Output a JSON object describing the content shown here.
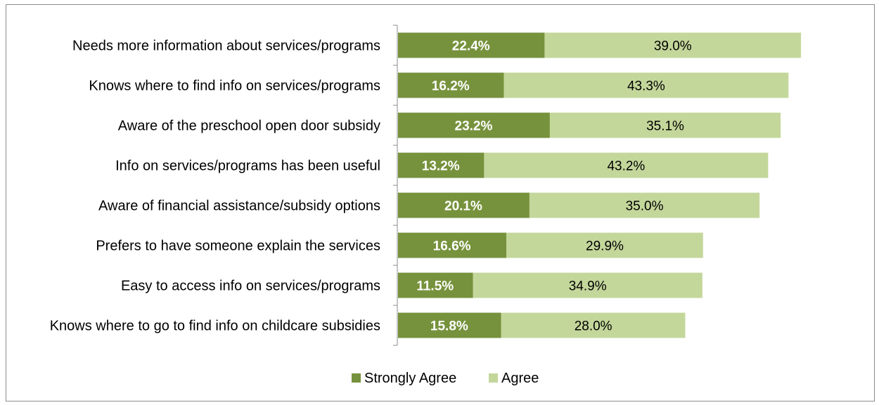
{
  "colors": {
    "strongly_agree": "#76923c",
    "agree": "#c4d79b",
    "axis": "#8c8c8c"
  },
  "chart_data": {
    "type": "bar",
    "orientation": "horizontal",
    "stacked": true,
    "categories": [
      "Needs more information about services/programs",
      "Knows where to find info on services/programs",
      "Aware of the preschool open door subsidy",
      "Info on services/programs has been useful",
      "Aware of financial assistance/subsidy options",
      "Prefers to have someone explain the services",
      "Easy to access info on services/programs",
      "Knows where to go to find info on childcare subsidies"
    ],
    "series": [
      {
        "name": "Strongly Agree",
        "values": [
          22.4,
          16.2,
          23.2,
          13.2,
          20.1,
          16.6,
          11.5,
          15.8
        ],
        "labels": [
          "22.4%",
          "16.2%",
          "23.2%",
          "13.2%",
          "20.1%",
          "16.6%",
          "11.5%",
          "15.8%"
        ]
      },
      {
        "name": "Agree",
        "values": [
          39.0,
          43.3,
          35.1,
          43.2,
          35.0,
          29.9,
          34.9,
          28.0
        ],
        "labels": [
          "39.0%",
          "43.3%",
          "35.1%",
          "43.2%",
          "35.0%",
          "29.9%",
          "34.9%",
          "28.0%"
        ]
      }
    ],
    "xlim": [
      0,
      66
    ],
    "grid": false,
    "legend_position": "bottom"
  }
}
